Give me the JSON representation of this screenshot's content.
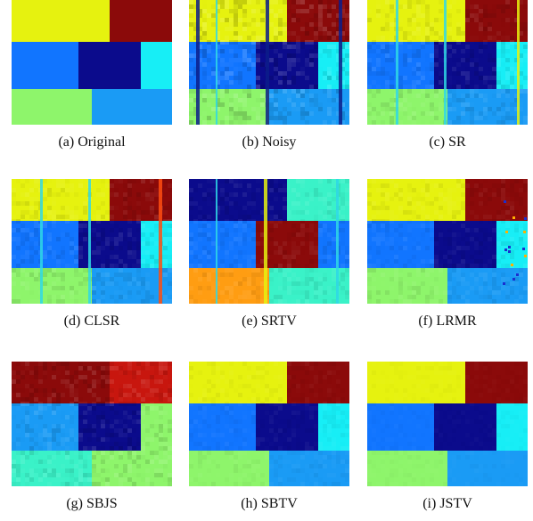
{
  "figure": {
    "panels": [
      {
        "id": "a",
        "caption": "(a) Original",
        "variant": "original"
      },
      {
        "id": "b",
        "caption": "(b) Noisy",
        "variant": "noisy"
      },
      {
        "id": "c",
        "caption": "(c) SR",
        "variant": "sr"
      },
      {
        "id": "d",
        "caption": "(d) CLSR",
        "variant": "clsr"
      },
      {
        "id": "e",
        "caption": "(e) SRTV",
        "variant": "srtv"
      },
      {
        "id": "f",
        "caption": "(f) LRMR",
        "variant": "lrmr"
      },
      {
        "id": "g",
        "caption": "(g) SBJS",
        "variant": "sbjs"
      },
      {
        "id": "h",
        "caption": "(h) SBTV",
        "variant": "sbtv"
      },
      {
        "id": "i",
        "caption": "(i) JSTV",
        "variant": "jstv"
      }
    ],
    "colors": {
      "yellow": "#e6f20f",
      "dark_red": "#8b0a0a",
      "red": "#c8160e",
      "light_blue": "#1175ff",
      "navy": "#0b0b8c",
      "cyan": "#17eef6",
      "light_green": "#8ef56b",
      "azure": "#1a9bf5",
      "orange": "#ff9d12",
      "aqua_green": "#3af2c8",
      "stripe_navy": "#0c1d8a",
      "stripe_cyan": "#2fd8e6",
      "stripe_red": "#ff4e10"
    }
  }
}
